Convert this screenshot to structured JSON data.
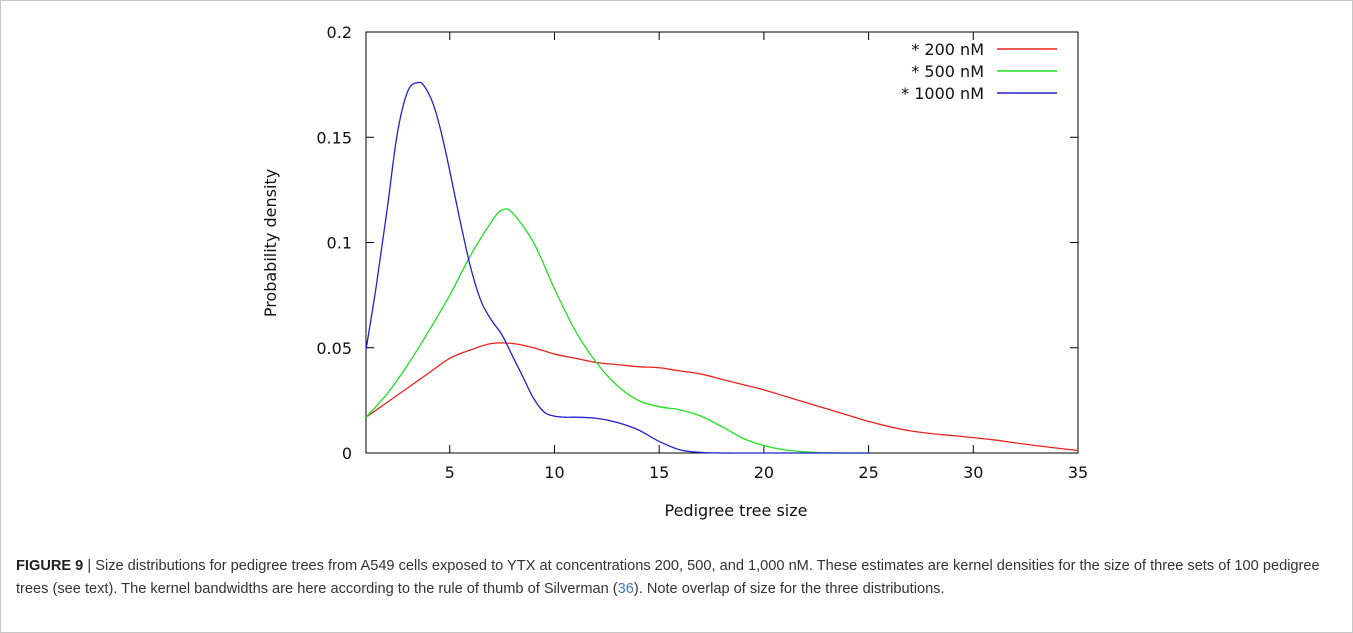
{
  "chart_data": {
    "type": "line",
    "xlabel": "Pedigree tree size",
    "ylabel": "Probability density",
    "xlim": [
      1,
      35
    ],
    "ylim": [
      0,
      0.2
    ],
    "xticks": [
      5,
      10,
      15,
      20,
      25,
      30,
      35
    ],
    "yticks": [
      0,
      0.05,
      0.1,
      0.15,
      0.2
    ],
    "ytick_labels": [
      "0",
      "0.05",
      "0.1",
      "0.15",
      "0.2"
    ],
    "legend_position": "top-right",
    "grid": false,
    "series": [
      {
        "name": "* 200 nM",
        "color": "#e8241f",
        "x": [
          1,
          2,
          3,
          4,
          5,
          6,
          7,
          8,
          9,
          10,
          11,
          12,
          13,
          14,
          15,
          16,
          17,
          18,
          19,
          20,
          21,
          22,
          23,
          24,
          25,
          26,
          27,
          28,
          29,
          30,
          31,
          32,
          33,
          34,
          35
        ],
        "y": [
          0.017,
          0.024,
          0.031,
          0.038,
          0.045,
          0.049,
          0.052,
          0.052,
          0.05,
          0.047,
          0.045,
          0.043,
          0.042,
          0.041,
          0.0405,
          0.039,
          0.0375,
          0.035,
          0.0325,
          0.03,
          0.027,
          0.024,
          0.021,
          0.018,
          0.015,
          0.0125,
          0.0105,
          0.0092,
          0.0083,
          0.0073,
          0.0062,
          0.0048,
          0.0035,
          0.0023,
          0.0012
        ]
      },
      {
        "name": "* 500 nM",
        "color": "#22e022",
        "x": [
          1,
          2,
          3,
          4,
          5,
          6,
          7,
          7.5,
          8,
          9,
          10,
          11,
          12,
          13,
          14,
          15,
          16,
          17,
          18,
          19,
          20,
          21,
          22,
          23,
          24,
          25
        ],
        "y": [
          0.017,
          0.028,
          0.042,
          0.058,
          0.075,
          0.094,
          0.11,
          0.1155,
          0.114,
          0.1,
          0.078,
          0.058,
          0.043,
          0.032,
          0.025,
          0.022,
          0.0205,
          0.0175,
          0.0125,
          0.007,
          0.0035,
          0.0015,
          0.0005,
          0.0001,
          0,
          0
        ]
      },
      {
        "name": "* 1000 nM",
        "color": "#2222cc",
        "x": [
          1,
          1.5,
          2,
          2.5,
          3,
          3.5,
          3.8,
          4.2,
          4.6,
          5,
          5.5,
          6,
          6.5,
          7,
          7.5,
          8,
          8.5,
          9,
          9.5,
          10,
          10.5,
          11,
          12,
          13,
          14,
          15,
          16,
          17,
          18,
          19,
          20,
          22,
          25
        ],
        "y": [
          0.049,
          0.08,
          0.115,
          0.152,
          0.172,
          0.176,
          0.174,
          0.166,
          0.152,
          0.134,
          0.11,
          0.088,
          0.072,
          0.063,
          0.056,
          0.046,
          0.036,
          0.026,
          0.0195,
          0.0175,
          0.017,
          0.017,
          0.0165,
          0.0145,
          0.011,
          0.0055,
          0.0015,
          0.0003,
          0,
          0,
          0,
          0,
          0
        ]
      }
    ]
  },
  "caption": {
    "label": "FIGURE 9",
    "separator": " | ",
    "text_before_ref": "Size distributions for pedigree trees from A549 cells exposed to YTX at concentrations 200, 500, and 1,000 nM. These estimates are kernel densities for the size of three sets of 100 pedigree trees (see text). The kernel bandwidths are here according to the rule of thumb of Silverman (",
    "ref": "36",
    "text_after_ref": "). Note overlap of size for the three distributions."
  }
}
